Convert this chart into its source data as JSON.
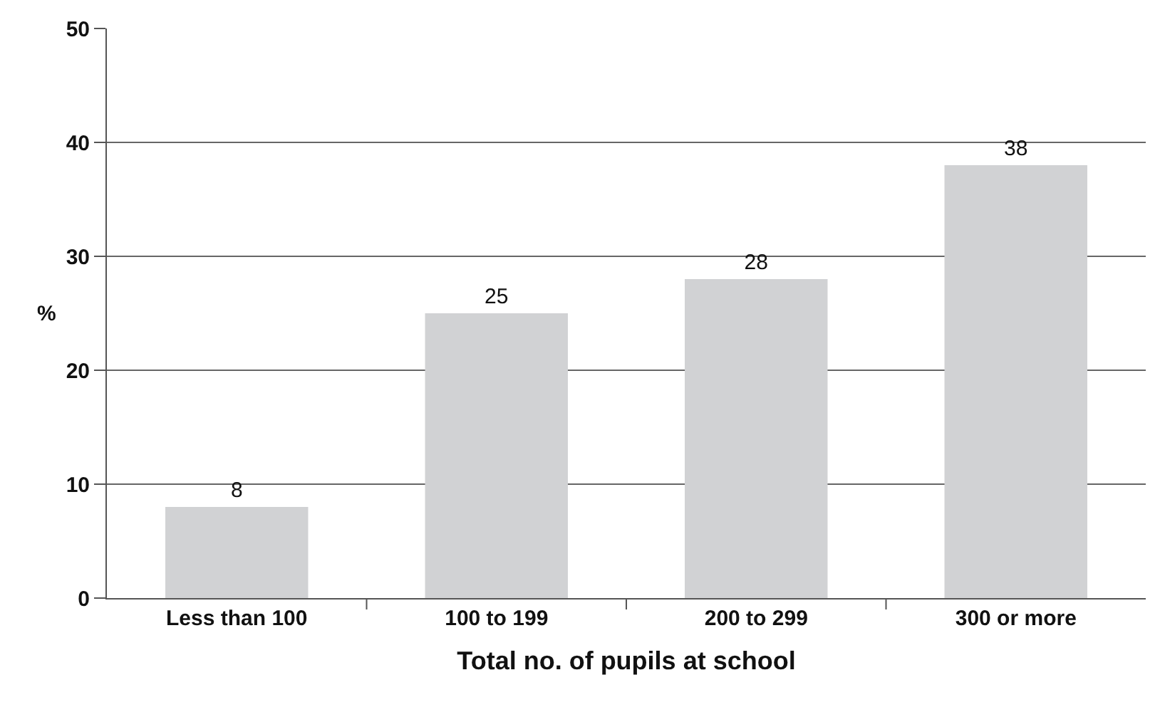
{
  "chart_data": {
    "type": "bar",
    "xlabel": "Total no. of pupils at school",
    "ylabel": "%",
    "categories": [
      "Less than 100",
      "100 to 199",
      "200 to 299",
      "300 or more"
    ],
    "values": [
      8,
      25,
      28,
      38
    ],
    "color": "#d1d2d4",
    "ylim": [
      0,
      50
    ],
    "yticks": [
      0,
      10,
      20,
      30,
      40,
      50
    ],
    "grid": "y",
    "data_labels": true,
    "legend": false
  }
}
